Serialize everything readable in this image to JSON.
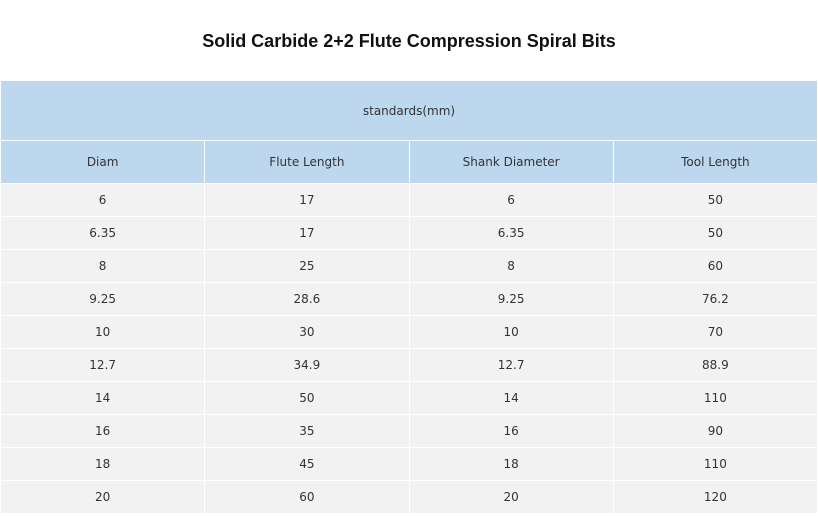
{
  "header": {
    "title": "Solid Carbide 2+2 Flute Compression Spiral Bits"
  },
  "table": {
    "group_header": "standards(mm)",
    "columns": [
      "Diam",
      "Flute Length",
      "Shank Diameter",
      "Tool Length"
    ],
    "rows": [
      [
        "6",
        "17",
        "6",
        "50"
      ],
      [
        "6.35",
        "17",
        "6.35",
        "50"
      ],
      [
        "8",
        "25",
        "8",
        "60"
      ],
      [
        "9.25",
        "28.6",
        "9.25",
        "76.2"
      ],
      [
        "10",
        "30",
        "10",
        "70"
      ],
      [
        "12.7",
        "34.9",
        "12.7",
        "88.9"
      ],
      [
        "14",
        "50",
        "14",
        "110"
      ],
      [
        "16",
        "35",
        "16",
        "90"
      ],
      [
        "18",
        "45",
        "18",
        "110"
      ],
      [
        "20",
        "60",
        "20",
        "120"
      ]
    ]
  }
}
